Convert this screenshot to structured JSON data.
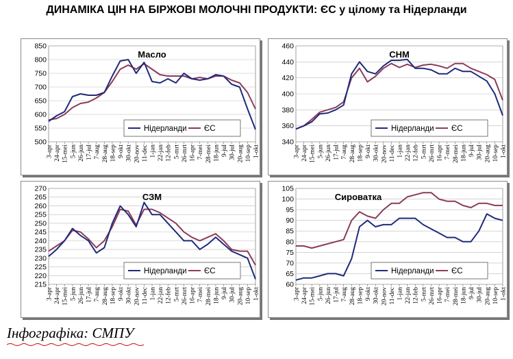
{
  "page": {
    "title": "ДИНАМІКА ЦІН НА БІРЖОВІ МОЛОЧНІ ПРОДУКТИ: ЄС у цілому та Нідерланди",
    "credit": "Інфографіка: СМПУ"
  },
  "colors": {
    "nl": "#1f2a7a",
    "eu": "#8b3a5a",
    "grid": "#bbbbbb"
  },
  "chart_data": [
    {
      "id": "butter",
      "type": "line",
      "title": "Масло",
      "ylim": [
        500,
        850
      ],
      "yticks": [
        500,
        550,
        600,
        650,
        700,
        750,
        800,
        850
      ],
      "grid": true,
      "legend": "bottom-center",
      "x": [
        "3-apr",
        "24-apr",
        "15-mei",
        "5-jun",
        "26-jun",
        "17-jul",
        "7-aug",
        "28-aug",
        "18-sep",
        "9-okt",
        "30-okt",
        "20-nov",
        "11-dec",
        "1-jan",
        "22-jan",
        "12-feb",
        "5-mrt",
        "26-mrt",
        "16-apr",
        "7-mei",
        "28-mei",
        "18-jun",
        "9-jul",
        "30-jul",
        "20-aug",
        "10-sep",
        "1-okt"
      ],
      "series": [
        {
          "name": "Нідерланди",
          "values": [
            575,
            595,
            610,
            665,
            675,
            670,
            670,
            680,
            740,
            795,
            800,
            750,
            790,
            720,
            715,
            730,
            715,
            750,
            730,
            725,
            730,
            745,
            740,
            710,
            700,
            620,
            545
          ]
        },
        {
          "name": "ЄС",
          "values": [
            580,
            585,
            600,
            625,
            640,
            645,
            660,
            680,
            720,
            765,
            780,
            765,
            785,
            765,
            745,
            740,
            740,
            740,
            730,
            735,
            730,
            740,
            740,
            725,
            715,
            680,
            620
          ]
        }
      ]
    },
    {
      "id": "smp",
      "type": "line",
      "title": "СНМ",
      "ylim": [
        340,
        460
      ],
      "yticks": [
        340,
        360,
        380,
        400,
        420,
        440,
        460
      ],
      "grid": true,
      "legend": "bottom-center",
      "x": [
        "3-apr",
        "24-apr",
        "15-mei",
        "5-jun",
        "26-jun",
        "17-jul",
        "7-aug",
        "28-aug",
        "18-sep",
        "9-okt",
        "30-okt",
        "20-nov",
        "11-dec",
        "1-jan",
        "22-jan",
        "12-feb",
        "5-mrt",
        "26-mrt",
        "16-apr",
        "7-mei",
        "28-mei",
        "18-jun",
        "9-jul",
        "30-jul",
        "20-aug",
        "10-sep",
        "1-okt"
      ],
      "series": [
        {
          "name": "Нідерланди",
          "values": [
            356,
            360,
            365,
            375,
            376,
            380,
            386,
            425,
            440,
            428,
            425,
            435,
            442,
            442,
            443,
            432,
            432,
            430,
            425,
            425,
            432,
            428,
            428,
            422,
            416,
            400,
            373
          ]
        },
        {
          "name": "ЄС",
          "values": [
            356,
            360,
            368,
            377,
            380,
            383,
            390,
            420,
            432,
            415,
            422,
            432,
            438,
            433,
            437,
            433,
            436,
            437,
            435,
            432,
            438,
            438,
            432,
            428,
            424,
            418,
            392
          ]
        }
      ]
    },
    {
      "id": "wmp",
      "type": "line",
      "title": "СЗМ",
      "ylim": [
        215,
        270
      ],
      "yticks": [
        215,
        220,
        225,
        230,
        235,
        240,
        245,
        250,
        255,
        260,
        265,
        270
      ],
      "grid": true,
      "legend": "bottom-center",
      "x": [
        "3-apr",
        "24-apr",
        "15-mei",
        "5-jun",
        "26-jun",
        "17-jul",
        "7-aug",
        "28-aug",
        "18-sep",
        "9-okt",
        "30-okt",
        "20-nov",
        "11-dec",
        "1-jan",
        "22-jan",
        "12-feb",
        "5-mrt",
        "26-mrt",
        "16-apr",
        "7-mei",
        "28-mei",
        "18-jun",
        "9-jul",
        "30-jul",
        "20-aug",
        "10-sep",
        "1-okt"
      ],
      "series": [
        {
          "name": "Нідерланди",
          "values": [
            231,
            235,
            240,
            247,
            243,
            240,
            233,
            236,
            250,
            260,
            255,
            248,
            262,
            255,
            255,
            250,
            245,
            240,
            240,
            235,
            238,
            242,
            238,
            234,
            232,
            230,
            218
          ]
        },
        {
          "name": "ЄС",
          "values": [
            234,
            237,
            240,
            246,
            245,
            241,
            236,
            240,
            248,
            258,
            257,
            249,
            258,
            258,
            256,
            253,
            250,
            245,
            242,
            240,
            242,
            244,
            240,
            235,
            234,
            234,
            226
          ]
        }
      ]
    },
    {
      "id": "whey",
      "type": "line",
      "title": "Сироватка",
      "ylim": [
        60,
        105
      ],
      "yticks": [
        60,
        65,
        70,
        75,
        80,
        85,
        90,
        95,
        100,
        105
      ],
      "grid": true,
      "legend": "bottom-center",
      "x": [
        "3-apr",
        "24-apr",
        "15-mei",
        "5-jun",
        "26-jun",
        "17-jul",
        "7-aug",
        "28-aug",
        "18-sep",
        "9-okt",
        "30-okt",
        "20-nov",
        "11-dec",
        "1-jan",
        "22-jan",
        "12-feb",
        "5-mrt",
        "26-mrt",
        "16-apr",
        "7-mei",
        "28-mei",
        "18-jun",
        "9-jul",
        "30-jul",
        "20-aug",
        "10-sep",
        "1-okt"
      ],
      "series": [
        {
          "name": "Нідерланди",
          "values": [
            62,
            63,
            63,
            64,
            65,
            65,
            64,
            72,
            87,
            90,
            87,
            88,
            88,
            91,
            91,
            91,
            88,
            86,
            84,
            82,
            82,
            80,
            80,
            85,
            93,
            91,
            90
          ]
        },
        {
          "name": "ЄС",
          "values": [
            78,
            78,
            77,
            78,
            79,
            80,
            81,
            90,
            94,
            92,
            91,
            95,
            98,
            98,
            101,
            102,
            103,
            103,
            100,
            99,
            99,
            97,
            96,
            98,
            98,
            97,
            97
          ]
        }
      ]
    }
  ]
}
